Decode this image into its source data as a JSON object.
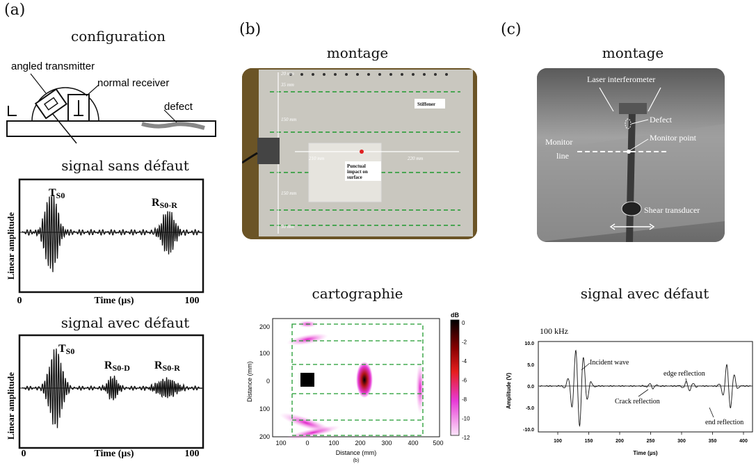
{
  "panels": {
    "a": {
      "letter": "(a)",
      "configuration": {
        "heading": "configuration",
        "labels": [
          "angled transmitter",
          "normal receiver",
          "defect"
        ]
      },
      "signal_sans": {
        "heading": "signal sans défaut",
        "ylabel": "Linear amplitude",
        "xlabel": "Time (µs)",
        "x_ticks": [
          "0",
          "100"
        ],
        "peaks": [
          "T",
          "R"
        ],
        "peak_subs": [
          "S0",
          "S0-R"
        ]
      },
      "signal_avec": {
        "heading": "signal avec défaut",
        "ylabel": "Linear amplitude",
        "xlabel": "Time (µs)",
        "x_ticks": [
          "0",
          "100"
        ],
        "peaks": [
          "T",
          "R",
          "R"
        ],
        "peak_subs": [
          "S0",
          "S0-D",
          "S0-R"
        ]
      }
    },
    "b": {
      "letter": "(b)",
      "montage": {
        "heading": "montage",
        "labels": [
          "20 mm",
          "35 mm",
          "150 mm",
          "210 mm",
          "220 mm",
          "150 mm",
          "50 mm",
          "Stiffener",
          "Punctual impact on surface"
        ]
      },
      "cartographie": {
        "heading": "cartographie",
        "x_ticks": [
          "100",
          "0",
          "100",
          "200",
          "300",
          "400",
          "500"
        ],
        "y_ticks": [
          "200",
          "100",
          "0",
          "100",
          "200"
        ],
        "xlabel": "Distance (mm)",
        "ylabel": "Distance (mm)",
        "colorbar_title": "dB",
        "colorbar_ticks": [
          "0",
          "-2",
          "-4",
          "-6",
          "-8",
          "-10",
          "-12"
        ],
        "caption": "(b)"
      }
    },
    "c": {
      "letter": "(c)",
      "montage": {
        "heading": "montage",
        "labels": [
          "Laser interferometer",
          "Defect",
          "Monitor",
          "line",
          "Monitor point",
          "Shear transducer"
        ]
      },
      "signal_avec": {
        "heading": "signal avec défaut",
        "plot_title": "100 kHz",
        "ylabel": "Amplitude (V)",
        "xlabel": "Time (µs)",
        "x_ticks": [
          "100",
          "150",
          "200",
          "250",
          "300",
          "350",
          "400"
        ],
        "y_ticks": [
          "10.0",
          "5.0",
          "0.0",
          "-5.0",
          "-10.0"
        ],
        "annotations": [
          "Incident wave",
          "edge reflection",
          "Crack reflection",
          "end reflection"
        ]
      }
    }
  },
  "colors": {
    "green_dash": "#1f9a2e",
    "magenta": "#e83ad6",
    "photo_b_frame": "#6b5426",
    "photo_b_plate": "#c9c7bf",
    "photo_c": "#8a8a8a"
  }
}
